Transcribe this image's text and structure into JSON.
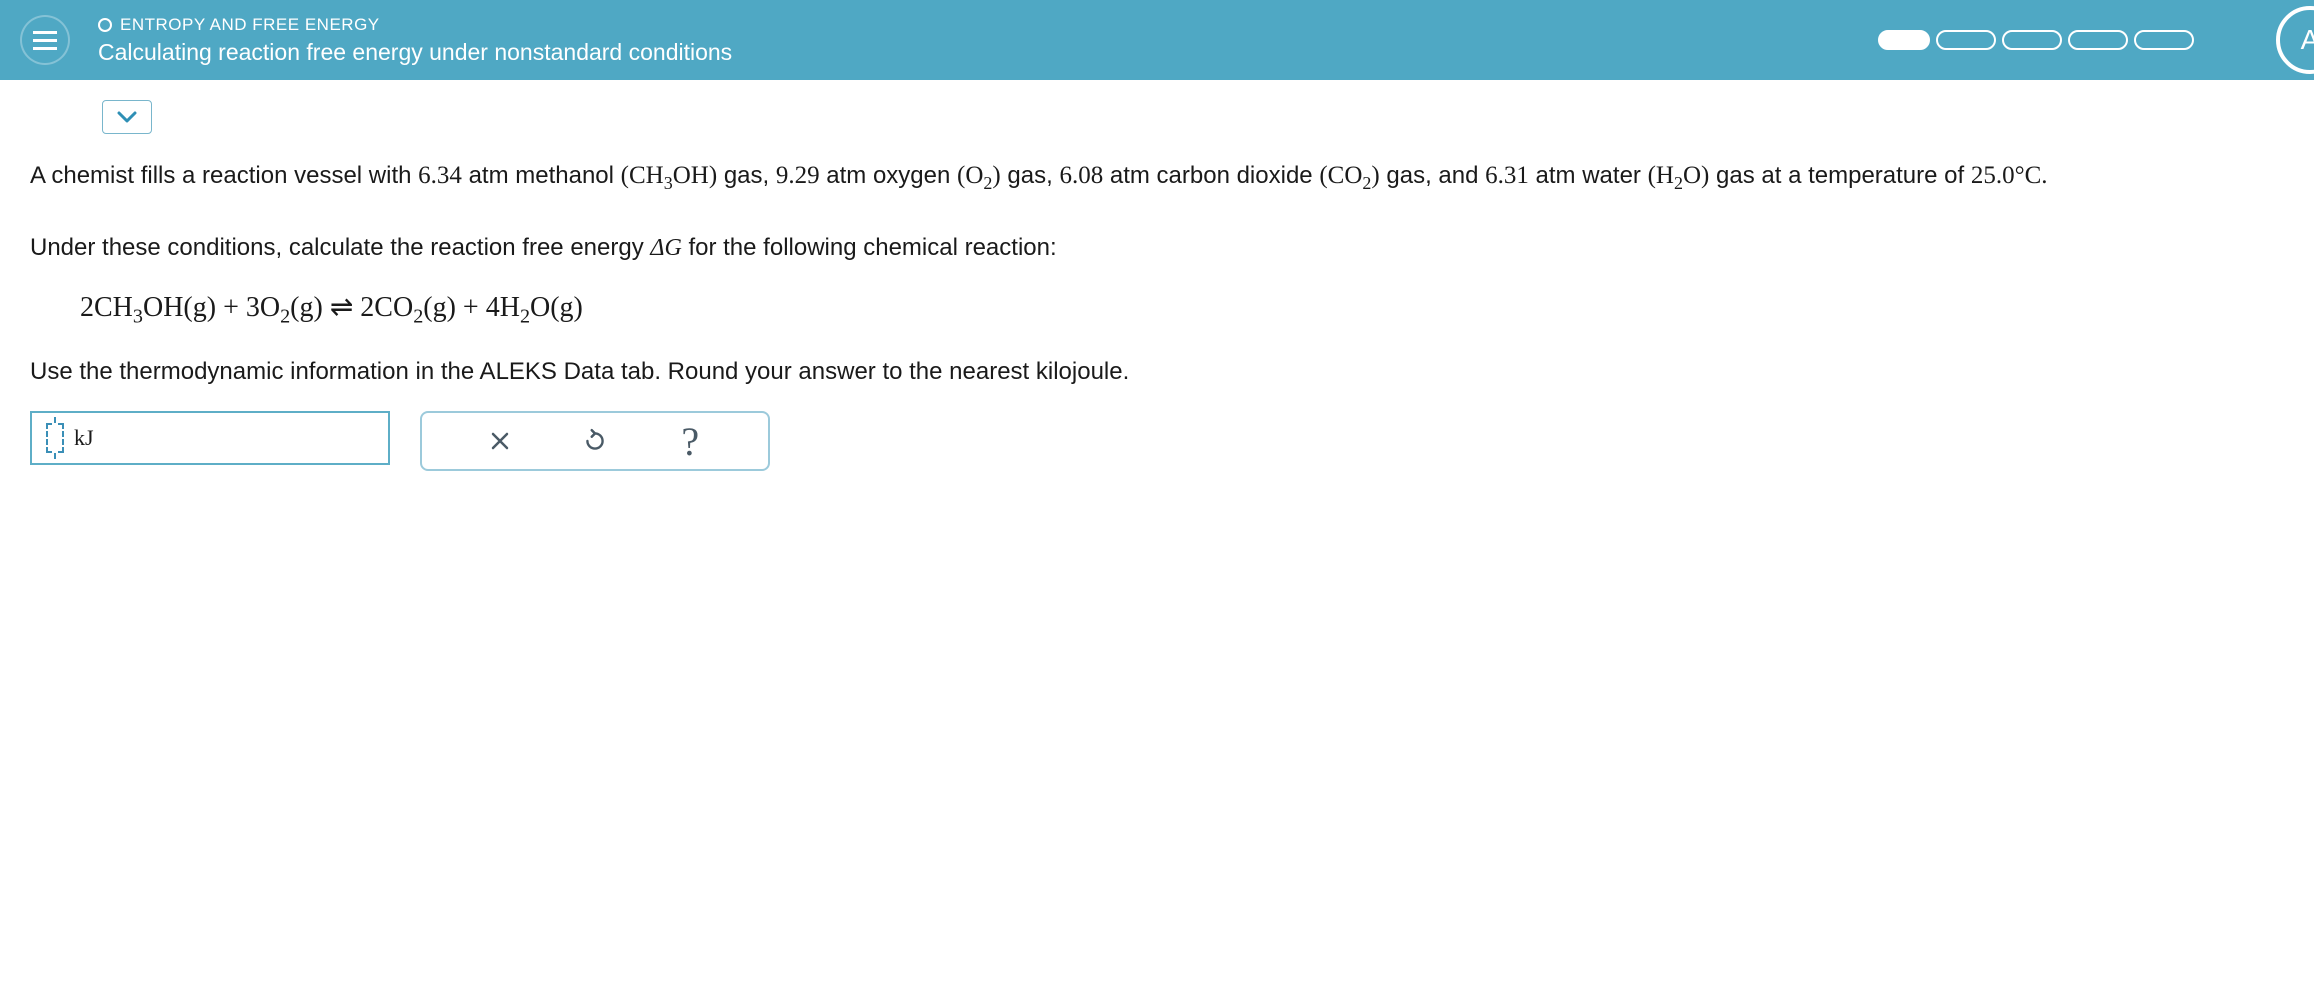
{
  "header": {
    "topic": "ENTROPY AND FREE ENERGY",
    "title": "Calculating reaction free energy under nonstandard conditions",
    "badge_letter": "A"
  },
  "problem": {
    "p1_a": "A chemist fills a reaction vessel with ",
    "v1": "6.34",
    "p1_b": " atm methanol ",
    "f1": "(CH<sub>3</sub>OH)",
    "p1_c": " gas, ",
    "v2": "9.29",
    "p1_d": " atm oxygen ",
    "f2": "(O<sub>2</sub>)",
    "p1_e": " gas, ",
    "v3": "6.08",
    "p1_f": " atm carbon dioxide ",
    "f3": "(CO<sub>2</sub>)",
    "p1_g": " gas, and ",
    "v4": "6.31",
    "p1_h": " atm water ",
    "f4": "(H<sub>2</sub>O)",
    "p1_i": " gas at a temperature of ",
    "temp": "25.0°C.",
    "instr1_a": "Under these conditions, calculate the reaction free energy ",
    "deltaG": "ΔG",
    "instr1_b": " for the following chemical reaction:",
    "equation": "2CH<sub>3</sub>OH(g) + 3O<sub>2</sub>(g) ⇌ 2CO<sub>2</sub>(g) + 4H<sub>2</sub>O(g)",
    "instr2": "Use the thermodynamic information in the ALEKS Data tab. Round your answer to the nearest kilojoule."
  },
  "answer": {
    "unit": "kJ",
    "value": ""
  },
  "controls": {
    "clear": "×",
    "help": "?"
  },
  "colors": {
    "header_bg": "#4fa8c4",
    "border": "#5eaec7"
  }
}
